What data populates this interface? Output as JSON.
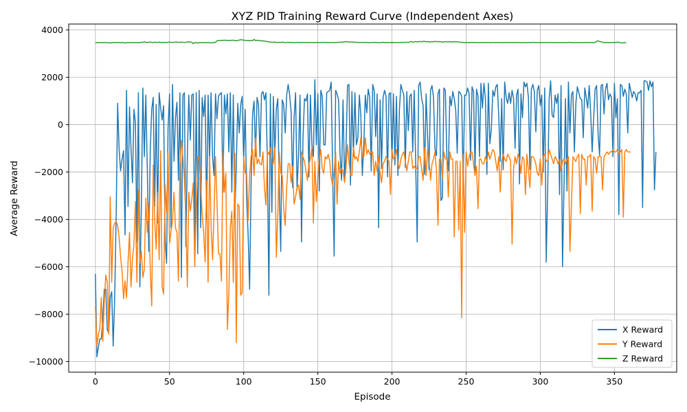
{
  "chart_data": {
    "type": "line",
    "title": "XYZ PID Training Reward Curve (Independent Axes)",
    "xlabel": "Episode",
    "ylabel": "Average Reward",
    "xlim": [
      -18,
      392
    ],
    "ylim": [
      -10450,
      4250
    ],
    "xticks": [
      0,
      50,
      100,
      150,
      200,
      250,
      300,
      350
    ],
    "yticks": [
      -10000,
      -8000,
      -6000,
      -4000,
      -2000,
      0,
      2000,
      4000
    ],
    "grid": true,
    "legend_position": "bottom-right",
    "x": "episodes 0-372 (step 1)",
    "series": [
      {
        "name": "X Reward",
        "color": "#1f77b4",
        "values": [
          -6300,
          -9800,
          -9400,
          -9050,
          -9050,
          -8150,
          -6950,
          -6950,
          -8650,
          -8800,
          -7300,
          -7050,
          -9350,
          -7350,
          -3900,
          900,
          -1050,
          -1950,
          -1450,
          -1100,
          -4650,
          1450,
          -3450,
          750,
          -950,
          -2450,
          650,
          80,
          -4950,
          1350,
          -6850,
          -3450,
          1550,
          -1350,
          1250,
          -1850,
          -5350,
          -1050,
          650,
          1150,
          -3450,
          850,
          -4150,
          1350,
          700,
          200,
          800,
          -4850,
          -5850,
          -150,
          1300,
          -4350,
          1700,
          -1550,
          300,
          950,
          -2350,
          1350,
          -6450,
          1250,
          1350,
          -5150,
          -1350,
          1250,
          -650,
          1250,
          1300,
          -4950,
          1350,
          -5450,
          1450,
          -4350,
          1150,
          350,
          1250,
          -3950,
          1250,
          -1450,
          1350,
          -1350,
          -2150,
          1300,
          250,
          1200,
          1300,
          1350,
          -2850,
          1250,
          450,
          1300,
          -1150,
          1350,
          -2850,
          1250,
          -3950,
          -1750,
          900,
          -350,
          850,
          1200,
          -1550,
          650,
          -3150,
          -4650,
          -6950,
          -2450,
          450,
          1000,
          -1350,
          1150,
          850,
          -1350,
          1300,
          1400,
          1050,
          1350,
          -1650,
          -7200,
          1300,
          -3700,
          1200,
          -1250,
          650,
          1100,
          -2750,
          -5350,
          1050,
          850,
          -350,
          1250,
          1700,
          1250,
          550,
          -2650,
          300,
          1350,
          -2750,
          -1250,
          1250,
          -4950,
          -550,
          1100,
          1000,
          1300,
          -2200,
          1250,
          -850,
          -1350,
          1900,
          -850,
          1300,
          -2800,
          1450,
          1200,
          -850,
          -850,
          1350,
          1400,
          1450,
          1800,
          -2050,
          -5550,
          1450,
          1300,
          1050,
          -1250,
          -2350,
          1050,
          -2350,
          -1050,
          1650,
          1700,
          -2550,
          1400,
          -1350,
          1350,
          -850,
          -550,
          1250,
          400,
          -2150,
          -850,
          1250,
          500,
          1500,
          1150,
          -1950,
          1700,
          1450,
          -500,
          1300,
          -4350,
          1050,
          -1850,
          1150,
          1450,
          1200,
          -2200,
          1300,
          1350,
          -1550,
          1300,
          -1700,
          1200,
          -2150,
          600,
          1700,
          1450,
          1250,
          -1800,
          1400,
          -250,
          1200,
          1300,
          -1150,
          1450,
          -1700,
          -4950,
          1650,
          1800,
          1100,
          800,
          -2100,
          1300,
          -500,
          -1900,
          1450,
          1650,
          1150,
          -1050,
          -1300,
          1300,
          1500,
          -3200,
          -3100,
          1550,
          1450,
          -1350,
          -1950,
          1200,
          800,
          1400,
          1100,
          600,
          -1200,
          1400,
          1350,
          1200,
          -2550,
          1250,
          1250,
          1550,
          1300,
          -1500,
          1600,
          1400,
          -1950,
          1500,
          1200,
          -1350,
          1750,
          700,
          1750,
          1100,
          -2100,
          1750,
          -800,
          -200,
          1450,
          1200,
          1600,
          1700,
          400,
          -1550,
          1100,
          -1900,
          1800,
          1150,
          900,
          1350,
          900,
          1450,
          1100,
          -1000,
          1250,
          1500,
          -2500,
          1300,
          300,
          1800,
          1600,
          1750,
          1150,
          -1900,
          1500,
          1700,
          1400,
          -300,
          1450,
          1650,
          800,
          1250,
          -2000,
          1550,
          -5800,
          -2700,
          1100,
          1850,
          400,
          300,
          1250,
          900,
          1300,
          -2950,
          1650,
          -6000,
          -2650,
          1100,
          -2800,
          1800,
          -350,
          1250,
          1400,
          -1150,
          900,
          1600,
          1350,
          1100,
          1050,
          -550,
          1550,
          1150,
          700,
          1650,
          500,
          -1150,
          300,
          1500,
          1650,
          -400,
          -1300,
          1650,
          1700,
          450,
          1500,
          1750,
          1050,
          1300,
          1150,
          -1350,
          1750,
          300,
          1100,
          -3800,
          1700,
          1650,
          1200,
          1500,
          1300,
          -350,
          1750,
          1450,
          1150,
          1400,
          1300,
          1000,
          1350,
          1350,
          1450,
          -3500,
          1850,
          1850,
          1800,
          1450,
          1850,
          1600,
          1800,
          -2750,
          -1150
        ]
      },
      {
        "name": "Y Reward",
        "color": "#ff7f0e",
        "values": [
          -7700,
          -9350,
          -8850,
          -8600,
          -7300,
          -9150,
          -7450,
          -6350,
          -6650,
          -8850,
          -3050,
          -6650,
          -4350,
          -4150,
          -4100,
          -4250,
          -4750,
          -5600,
          -6200,
          -7350,
          -6600,
          -7300,
          -5850,
          -4550,
          -6850,
          -5650,
          -5050,
          -3250,
          -6650,
          -2750,
          -5850,
          -5350,
          -6450,
          -6100,
          -3100,
          -4550,
          -3350,
          -6150,
          -7650,
          -1700,
          -4050,
          -5250,
          -2850,
          -5700,
          -1100,
          -6850,
          -7150,
          -2550,
          -3700,
          -1200,
          -5000,
          -4500,
          -4050,
          -2850,
          -4350,
          -4550,
          -6600,
          -1750,
          -650,
          -1350,
          -2250,
          -3950,
          -6850,
          -2850,
          -3650,
          -3150,
          -2450,
          -6000,
          -3450,
          -1350,
          -1450,
          -2550,
          -3750,
          -4550,
          -5800,
          -2350,
          -6650,
          -1350,
          -4250,
          -5700,
          -3750,
          -1350,
          -3250,
          -5450,
          -5450,
          -6600,
          -1150,
          -2850,
          -2050,
          -8650,
          -7050,
          -4350,
          -3650,
          -6650,
          -1200,
          -9200,
          -3350,
          -3450,
          -7200,
          -7100,
          -1350,
          -2050,
          -2050,
          -4050,
          -2150,
          -1350,
          -1050,
          -2150,
          -550,
          -1650,
          -1450,
          -1650,
          -1700,
          -1150,
          -2650,
          -3400,
          -1150,
          -1250,
          -950,
          -1650,
          -1650,
          -950,
          -5600,
          -3850,
          -1150,
          -2050,
          -2150,
          -3550,
          -4250,
          -2650,
          -1650,
          -1650,
          -2450,
          -1750,
          -3350,
          -3050,
          -2650,
          -2550,
          -3150,
          -1150,
          -1350,
          -1550,
          -1950,
          -2350,
          -1650,
          -1450,
          -950,
          -4150,
          -1550,
          -3250,
          -2150,
          -1450,
          -1050,
          -1850,
          -2050,
          -1350,
          -1450,
          -1250,
          -1550,
          -2250,
          -2550,
          -1950,
          -1150,
          -3350,
          -1550,
          -2050,
          -1850,
          -1950,
          -2450,
          -1850,
          -850,
          -1550,
          -2150,
          -2150,
          -950,
          -1450,
          -1350,
          -1550,
          -1150,
          -550,
          -1350,
          -1350,
          -550,
          -1250,
          -1050,
          -1250,
          -1150,
          -1150,
          -2150,
          -1550,
          -1950,
          -1350,
          -2050,
          -2450,
          -1650,
          -1550,
          -1350,
          -1450,
          -1550,
          -2950,
          -1050,
          -1450,
          -1350,
          -1050,
          -1650,
          -1850,
          -1450,
          -1250,
          -1150,
          -1550,
          -1950,
          -1550,
          -1150,
          -1150,
          -1850,
          -1750,
          -1850,
          -1850,
          -1350,
          -1350,
          -1850,
          -2350,
          -950,
          -2150,
          -1050,
          -1450,
          -2350,
          -1650,
          -1450,
          -1150,
          -1950,
          -4250,
          -1450,
          -1450,
          -2250,
          -1150,
          -1450,
          -1450,
          -3050,
          -1150,
          -1450,
          -1450,
          -4750,
          -1550,
          -1550,
          -4450,
          -1550,
          -8150,
          -1250,
          -4550,
          -1150,
          -1750,
          -1350,
          -1150,
          -1150,
          -1650,
          -2150,
          -1750,
          -3550,
          -1450,
          -1450,
          -1650,
          -1650,
          -1350,
          -1550,
          -1150,
          -1450,
          -1250,
          -1050,
          -1150,
          -1550,
          -1950,
          -1350,
          -2850,
          -1550,
          -1250,
          -1450,
          -1550,
          -1250,
          -1350,
          -1550,
          -5050,
          -1850,
          -1350,
          -1650,
          -1250,
          -1450,
          -2050,
          -1350,
          -1450,
          -2950,
          -1250,
          -1950,
          -2650,
          -1350,
          -1350,
          -1450,
          -1650,
          -2050,
          -2150,
          -1450,
          -2550,
          -1350,
          -1250,
          -1550,
          -1550,
          -1050,
          -1250,
          -1450,
          -1650,
          -1350,
          -1450,
          -1650,
          -1450,
          -1950,
          -1550,
          -1450,
          -1650,
          -1450,
          -1350,
          -5350,
          -3450,
          -1350,
          -1450,
          -1550,
          -1350,
          -1250,
          -3750,
          -1250,
          -1450,
          -1450,
          -2550,
          -1350,
          -1350,
          -1250,
          -3650,
          -1350,
          -1450,
          -2050,
          -1350,
          -1350,
          -1350,
          -2750,
          -1350,
          -1250,
          -1150,
          -1250,
          -1150,
          -1150,
          -1050,
          -1150,
          -1150,
          -1050,
          -1250,
          -1150,
          -1050,
          -3900,
          -1150,
          -1050,
          -1150,
          -1150,
          -1150
        ]
      },
      {
        "name": "Z Reward",
        "color": "#2ca02c",
        "values": [
          3450,
          3460,
          3470,
          3460,
          3460,
          3470,
          3460,
          3470,
          3460,
          3460,
          3450,
          3460,
          3470,
          3460,
          3470,
          3460,
          3470,
          3460,
          3470,
          3460,
          3450,
          3460,
          3470,
          3460,
          3460,
          3470,
          3460,
          3470,
          3460,
          3460,
          3470,
          3470,
          3480,
          3500,
          3480,
          3470,
          3480,
          3490,
          3470,
          3470,
          3480,
          3480,
          3470,
          3490,
          3470,
          3470,
          3480,
          3470,
          3470,
          3480,
          3490,
          3480,
          3470,
          3480,
          3490,
          3490,
          3480,
          3470,
          3490,
          3480,
          3470,
          3480,
          3490,
          3500,
          3490,
          3480,
          3420,
          3470,
          3460,
          3450,
          3460,
          3470,
          3460,
          3470,
          3460,
          3460,
          3470,
          3460,
          3450,
          3470,
          3460,
          3480,
          3540,
          3560,
          3550,
          3560,
          3560,
          3570,
          3560,
          3560,
          3550,
          3560,
          3560,
          3570,
          3550,
          3540,
          3560,
          3570,
          3590,
          3580,
          3570,
          3560,
          3550,
          3560,
          3540,
          3560,
          3550,
          3600,
          3550,
          3560,
          3560,
          3550,
          3540,
          3540,
          3530,
          3520,
          3510,
          3500,
          3490,
          3480,
          3480,
          3490,
          3470,
          3470,
          3480,
          3470,
          3490,
          3470,
          3470,
          3470,
          3480,
          3470,
          3470,
          3480,
          3460,
          3470,
          3470,
          3480,
          3460,
          3470,
          3470,
          3470,
          3470,
          3460,
          3470,
          3470,
          3470,
          3460,
          3470,
          3470,
          3470,
          3460,
          3470,
          3480,
          3470,
          3470,
          3470,
          3460,
          3470,
          3470,
          3470,
          3460,
          3470,
          3470,
          3480,
          3490,
          3480,
          3490,
          3500,
          3510,
          3500,
          3490,
          3490,
          3500,
          3480,
          3490,
          3480,
          3470,
          3470,
          3470,
          3480,
          3460,
          3470,
          3470,
          3460,
          3460,
          3470,
          3470,
          3480,
          3460,
          3470,
          3460,
          3460,
          3470,
          3480,
          3460,
          3470,
          3460,
          3470,
          3460,
          3480,
          3460,
          3470,
          3470,
          3460,
          3470,
          3470,
          3480,
          3470,
          3480,
          3480,
          3470,
          3500,
          3510,
          3490,
          3500,
          3510,
          3490,
          3510,
          3510,
          3500,
          3520,
          3520,
          3500,
          3510,
          3500,
          3490,
          3510,
          3500,
          3520,
          3510,
          3500,
          3510,
          3500,
          3490,
          3490,
          3510,
          3500,
          3500,
          3510,
          3490,
          3500,
          3510,
          3500,
          3500,
          3490,
          3480,
          3480,
          3470,
          3460,
          3470,
          3470,
          3460,
          3470,
          3470,
          3470,
          3470,
          3460,
          3470,
          3460,
          3470,
          3460,
          3470,
          3460,
          3470,
          3470,
          3460,
          3460,
          3470,
          3470,
          3460,
          3470,
          3470,
          3460,
          3470,
          3460,
          3470,
          3460,
          3470,
          3470,
          3470,
          3460,
          3470,
          3460,
          3470,
          3470,
          3470,
          3460,
          3470,
          3470,
          3460,
          3460,
          3470,
          3460,
          3470,
          3480,
          3470,
          3460,
          3470,
          3460,
          3470,
          3460,
          3470,
          3470,
          3470,
          3460,
          3470,
          3470,
          3460,
          3470,
          3460,
          3470,
          3460,
          3470,
          3460,
          3470,
          3460,
          3470,
          3460,
          3480,
          3470,
          3460,
          3470,
          3460,
          3470,
          3460,
          3470,
          3460,
          3470,
          3460,
          3470,
          3460,
          3470,
          3470,
          3460,
          3470,
          3460,
          3480,
          3520,
          3540,
          3510,
          3500,
          3480,
          3470,
          3460,
          3470,
          3460,
          3470,
          3460,
          3470,
          3480,
          3460,
          3490,
          3470,
          3460,
          3450,
          3460,
          3460,
          3460
        ]
      }
    ]
  }
}
